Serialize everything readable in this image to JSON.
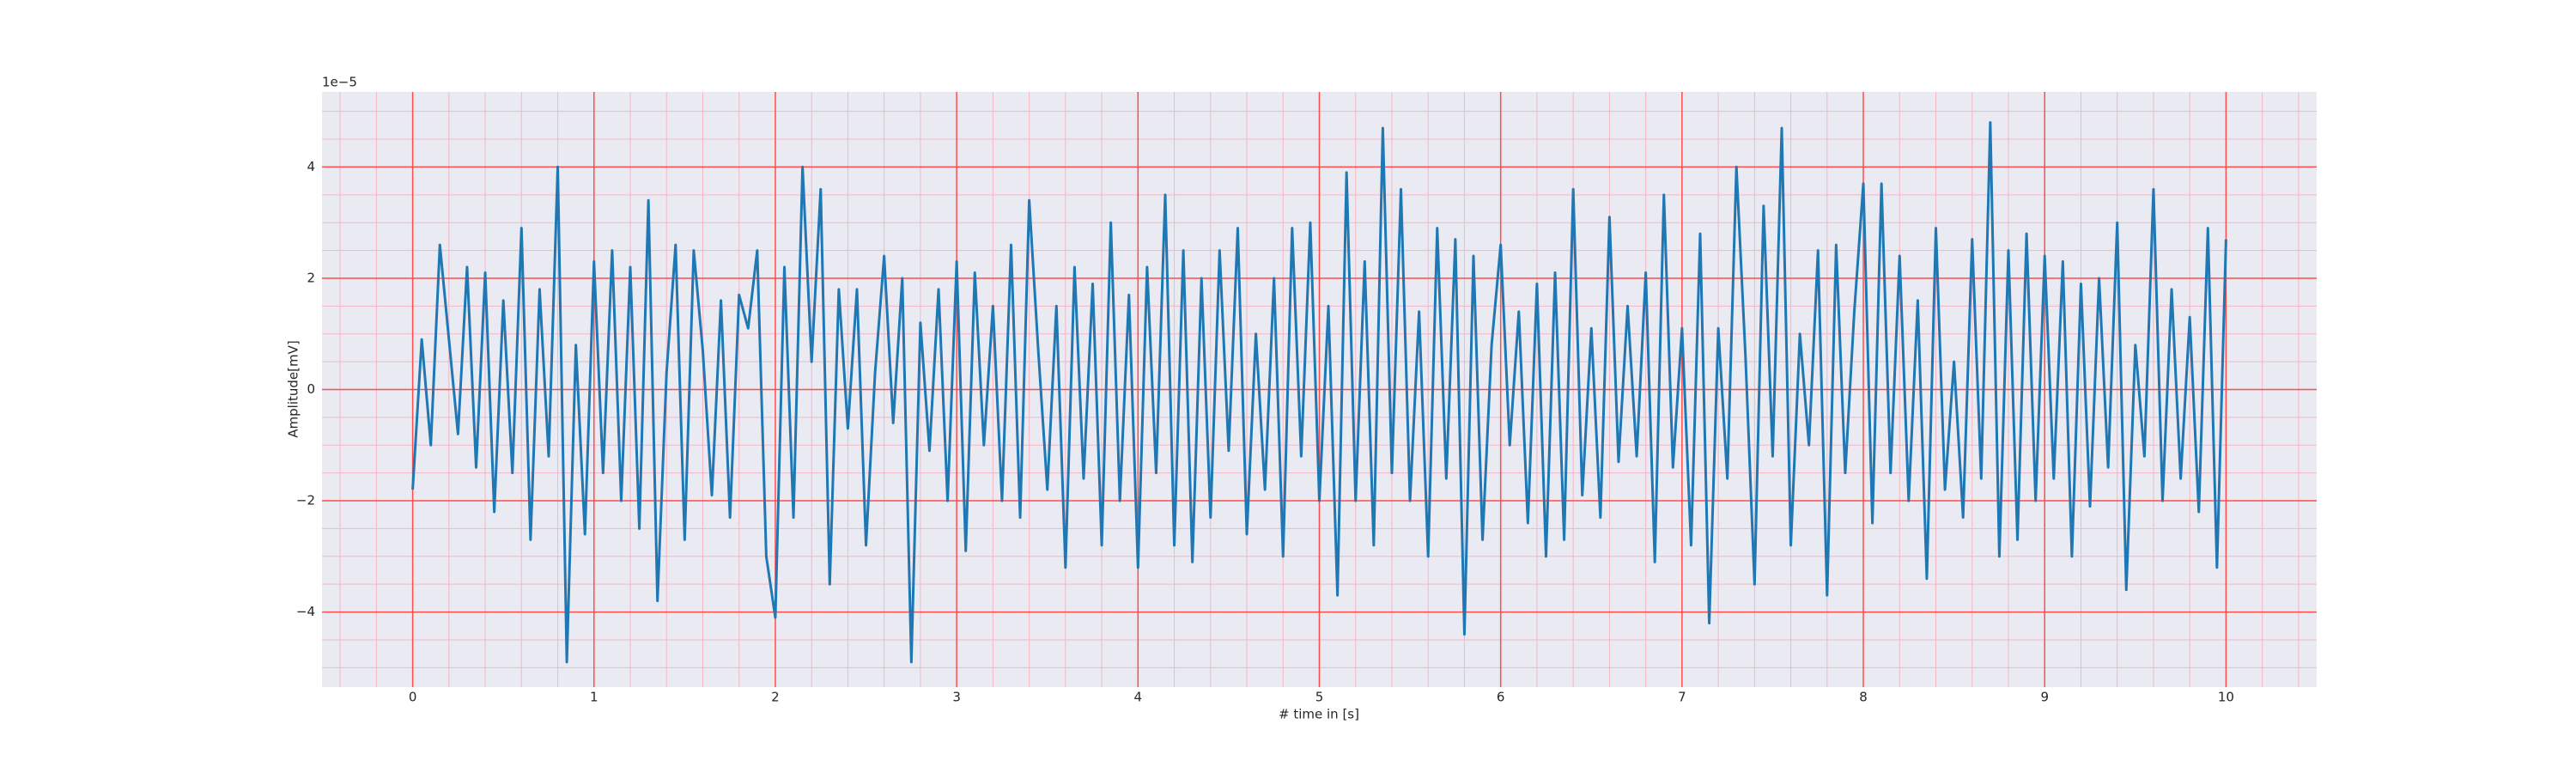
{
  "chart_data": {
    "type": "line",
    "x_label": "# time in [s]",
    "y_label": "Amplitude[mV]",
    "y_offset_label": "1e−5",
    "x": [
      0,
      0.05,
      0.1,
      0.15,
      0.2,
      0.25,
      0.3,
      0.35,
      0.4,
      0.45,
      0.5,
      0.55,
      0.6,
      0.65,
      0.7,
      0.75,
      0.8,
      0.85,
      0.9,
      0.95,
      1,
      1.05,
      1.1,
      1.15,
      1.2,
      1.25,
      1.3,
      1.35,
      1.4,
      1.45,
      1.5,
      1.55,
      1.6,
      1.65,
      1.7,
      1.75,
      1.8,
      1.85,
      1.9,
      1.95,
      2,
      2.05,
      2.1,
      2.15,
      2.2,
      2.25,
      2.3,
      2.35,
      2.4,
      2.45,
      2.5,
      2.55,
      2.6,
      2.65,
      2.7,
      2.75,
      2.8,
      2.85,
      2.9,
      2.95,
      3,
      3.05,
      3.1,
      3.15,
      3.2,
      3.25,
      3.3,
      3.35,
      3.4,
      3.45,
      3.5,
      3.55,
      3.6,
      3.65,
      3.7,
      3.75,
      3.8,
      3.85,
      3.9,
      3.95,
      4,
      4.05,
      4.1,
      4.15,
      4.2,
      4.25,
      4.3,
      4.35,
      4.4,
      4.45,
      4.5,
      4.55,
      4.6,
      4.65,
      4.7,
      4.75,
      4.8,
      4.85,
      4.9,
      4.95,
      5,
      5.05,
      5.1,
      5.15,
      5.2,
      5.25,
      5.3,
      5.35,
      5.4,
      5.45,
      5.5,
      5.55,
      5.6,
      5.65,
      5.7,
      5.75,
      5.8,
      5.85,
      5.9,
      5.95,
      6,
      6.05,
      6.1,
      6.15,
      6.2,
      6.25,
      6.3,
      6.35,
      6.4,
      6.45,
      6.5,
      6.55,
      6.6,
      6.65,
      6.7,
      6.75,
      6.8,
      6.85,
      6.9,
      6.95,
      7,
      7.05,
      7.1,
      7.15,
      7.2,
      7.25,
      7.3,
      7.35,
      7.4,
      7.45,
      7.5,
      7.55,
      7.6,
      7.65,
      7.7,
      7.75,
      7.8,
      7.85,
      7.9,
      7.95,
      8,
      8.05,
      8.1,
      8.15,
      8.2,
      8.25,
      8.3,
      8.35,
      8.4,
      8.45,
      8.5,
      8.55,
      8.6,
      8.65,
      8.7,
      8.75,
      8.8,
      8.85,
      8.9,
      8.95,
      9,
      9.05,
      9.1,
      9.15,
      9.2,
      9.25,
      9.3,
      9.35,
      9.4,
      9.45,
      9.5,
      9.55,
      9.6,
      9.65,
      9.7,
      9.75,
      9.8,
      9.85,
      9.9,
      9.95,
      10
    ],
    "series": [
      {
        "color": "#1f77b4",
        "values": [
          -1.8,
          0.9,
          -1.0,
          2.6,
          0.9,
          -0.8,
          2.2,
          -1.4,
          2.1,
          -2.2,
          1.6,
          -1.5,
          2.9,
          -2.7,
          1.8,
          -1.2,
          4.0,
          -4.9,
          0.8,
          -2.6,
          2.3,
          -1.5,
          2.5,
          -2.0,
          2.2,
          -2.5,
          3.4,
          -3.8,
          0.3,
          2.6,
          -2.7,
          2.5,
          0.7,
          -1.9,
          1.6,
          -2.3,
          1.7,
          1.1,
          2.5,
          -3.0,
          -4.1,
          2.2,
          -2.3,
          4.0,
          0.5,
          3.6,
          -3.5,
          1.8,
          -0.7,
          1.8,
          -2.8,
          0.3,
          2.4,
          -0.6,
          2.0,
          -4.9,
          1.2,
          -1.1,
          1.8,
          -2.0,
          2.3,
          -2.9,
          2.1,
          -1.0,
          1.5,
          -2.0,
          2.6,
          -2.3,
          3.4,
          0.7,
          -1.8,
          1.5,
          -3.2,
          2.2,
          -1.6,
          1.9,
          -2.8,
          3.0,
          -2.0,
          1.7,
          -3.2,
          2.2,
          -1.5,
          3.5,
          -2.8,
          2.5,
          -3.1,
          2.0,
          -2.3,
          2.5,
          -1.1,
          2.9,
          -2.6,
          1.0,
          -1.8,
          2.0,
          -3.0,
          2.9,
          -1.2,
          3.0,
          -2.0,
          1.5,
          -3.7,
          3.9,
          -2.0,
          2.3,
          -2.8,
          4.7,
          -1.5,
          3.6,
          -2.0,
          1.4,
          -3.0,
          2.9,
          -1.6,
          2.7,
          -4.4,
          2.4,
          -2.7,
          0.8,
          2.6,
          -1.0,
          1.4,
          -2.4,
          1.9,
          -3.0,
          2.1,
          -2.7,
          3.6,
          -1.9,
          1.1,
          -2.3,
          3.1,
          -1.3,
          1.5,
          -1.2,
          2.1,
          -3.1,
          3.5,
          -1.4,
          1.1,
          -2.8,
          2.8,
          -4.2,
          1.1,
          -1.6,
          4.0,
          0.6,
          -3.5,
          3.3,
          -1.2,
          4.7,
          -2.8,
          1.0,
          -1.0,
          2.5,
          -3.7,
          2.6,
          -1.5,
          1.4,
          3.7,
          -2.4,
          3.7,
          -1.5,
          2.4,
          -2.0,
          1.6,
          -3.4,
          2.9,
          -1.8,
          0.5,
          -2.3,
          2.7,
          -1.6,
          4.8,
          -3.0,
          2.5,
          -2.7,
          2.8,
          -2.0,
          2.4,
          -1.6,
          2.3,
          -3.0,
          1.9,
          -2.1,
          2.0,
          -1.4,
          3.0,
          -3.6,
          0.8,
          -1.2,
          3.6,
          -2.0,
          1.8,
          -1.6,
          1.3,
          -2.2,
          2.9,
          -3.2,
          2.7
        ]
      }
    ],
    "xlim": [
      -0.5,
      10.5
    ],
    "ylim": [
      -5.35,
      5.35
    ],
    "xticks": [
      0,
      1,
      2,
      3,
      4,
      5,
      6,
      7,
      8,
      9,
      10
    ],
    "yticks": [
      {
        "value": -4,
        "label": "−4"
      },
      {
        "value": -2,
        "label": "−2"
      },
      0,
      2,
      4
    ],
    "grid": true,
    "minor_grid": true,
    "grid_color": "#ff4d4d",
    "minor_grid_color": "#f4b6c4",
    "background": "#eaeaf2"
  }
}
